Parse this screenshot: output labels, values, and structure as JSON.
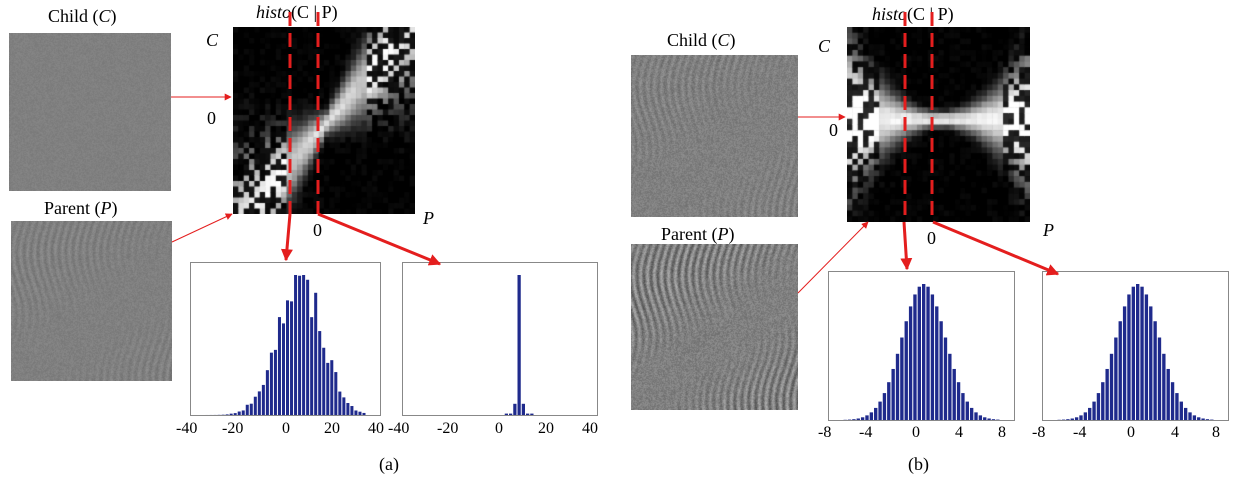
{
  "panels": [
    {
      "id": "a",
      "caption": "(a)",
      "child_label": "Child (",
      "child_var": "C",
      "parent_label": "Parent (",
      "parent_var": "P",
      "close_paren": ")",
      "histo_prefix": "histo",
      "histo_args": "(C | P)",
      "axis_c": "C",
      "axis_p": "P",
      "zero_c": "0",
      "zero_p": "0",
      "hist1_ticks": [
        "-40",
        "-20",
        "0",
        "20",
        "40"
      ],
      "hist2_ticks": [
        "-40",
        "-20",
        "0",
        "20",
        "40"
      ]
    },
    {
      "id": "b",
      "caption": "(b)",
      "child_label": "Child (",
      "child_var": "C",
      "parent_label": "Parent (",
      "parent_var": "P",
      "close_paren": ")",
      "histo_prefix": "histo",
      "histo_args": "(C | P)",
      "axis_c": "C",
      "axis_p": "P",
      "zero_c": "0",
      "zero_p": "0",
      "hist1_ticks": [
        "-8",
        "-4",
        "0",
        "4",
        "8"
      ],
      "hist2_ticks": [
        "-8",
        "-4",
        "0",
        "4",
        "8"
      ]
    }
  ],
  "colors": {
    "arrow": "#e41e1e",
    "bar": "#1f2a8c",
    "histo_bg": "#000000"
  }
}
